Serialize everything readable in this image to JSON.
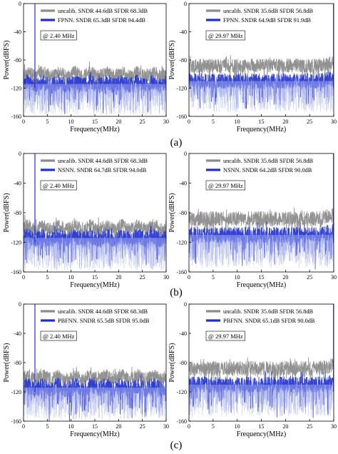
{
  "captions": [
    "(a)",
    "(b)",
    "(c)"
  ],
  "colors": {
    "uncalib": "#8c8c8c",
    "calib": "#1f2fd0",
    "calib_light": "#8d99ea",
    "axis": "#000000"
  },
  "chart_data": [
    {
      "type": "line",
      "xlabel": "Frequency(MHz)",
      "ylabel": "Power(dBFS)",
      "xlim": [
        0,
        30
      ],
      "ylim": [
        -160,
        0
      ],
      "xticks": [
        0,
        5,
        10,
        15,
        20,
        25,
        30
      ],
      "yticks": [
        0,
        -40,
        -80,
        -120,
        -160
      ],
      "annotation": "@ 2.40 MHz",
      "signal_freq_mhz": 2.4,
      "legend_position": "top",
      "series": [
        {
          "name": "uncalib. SNDR 44.6dB  SFDR 68.3dB",
          "color": "uncalib",
          "floor_db": -100,
          "spread_db": 9,
          "sndr_db": 44.6,
          "sfdr_db": 68.3
        },
        {
          "name": "FPNN. SNDR 65.3dB  SFDR 94.4dB",
          "color": "calib",
          "floor_db": -114,
          "spread_db": 11,
          "sndr_db": 65.3,
          "sfdr_db": 94.4
        }
      ]
    },
    {
      "type": "line",
      "xlabel": "Frequency(MHz)",
      "ylabel": "Power(dBFS)",
      "xlim": [
        0,
        30
      ],
      "ylim": [
        -160,
        0
      ],
      "xticks": [
        0,
        5,
        10,
        15,
        20,
        25,
        30
      ],
      "yticks": [
        0,
        -40,
        -80,
        -120,
        -160
      ],
      "annotation": "@ 29.97 MHz",
      "signal_freq_mhz": 29.97,
      "legend_position": "top",
      "series": [
        {
          "name": "uncalib. SNDR 35.6dB  SFDR 56.8dB",
          "color": "uncalib",
          "floor_db": -88,
          "spread_db": 10,
          "sndr_db": 35.6,
          "sfdr_db": 56.8
        },
        {
          "name": "FPNN. SNDR 64.9dB  SFDR 91.9dB",
          "color": "calib",
          "floor_db": -110,
          "spread_db": 11,
          "sndr_db": 64.9,
          "sfdr_db": 91.9
        }
      ]
    },
    {
      "type": "line",
      "xlabel": "Frequency(MHz)",
      "ylabel": "Power(dBFS)",
      "xlim": [
        0,
        30
      ],
      "ylim": [
        -160,
        0
      ],
      "xticks": [
        0,
        5,
        10,
        15,
        20,
        25,
        30
      ],
      "yticks": [
        0,
        -40,
        -80,
        -120,
        -160
      ],
      "annotation": "@ 2.40 MHz",
      "signal_freq_mhz": 2.4,
      "legend_position": "top",
      "series": [
        {
          "name": "uncalib. SNDR 44.6dB  SFDR 68.3dB",
          "color": "uncalib",
          "floor_db": -100,
          "spread_db": 9,
          "sndr_db": 44.6,
          "sfdr_db": 68.3
        },
        {
          "name": "NSNN. SNDR 64.7dB  SFDR 94.0dB",
          "color": "calib",
          "floor_db": -114,
          "spread_db": 11,
          "sndr_db": 64.7,
          "sfdr_db": 94.0
        }
      ]
    },
    {
      "type": "line",
      "xlabel": "Frequency(MHz)",
      "ylabel": "Power(dBFS)",
      "xlim": [
        0,
        30
      ],
      "ylim": [
        -160,
        0
      ],
      "xticks": [
        0,
        5,
        10,
        15,
        20,
        25,
        30
      ],
      "yticks": [
        0,
        -40,
        -80,
        -120,
        -160
      ],
      "annotation": "@ 29.97 MHz",
      "signal_freq_mhz": 29.97,
      "legend_position": "top",
      "series": [
        {
          "name": "uncalib. SNDR 35.6dB  SFDR 56.8dB",
          "color": "uncalib",
          "floor_db": -88,
          "spread_db": 10,
          "sndr_db": 35.6,
          "sfdr_db": 56.8
        },
        {
          "name": "NSNN. SNDR 64.2dB  SFDR 90.0dB",
          "color": "calib",
          "floor_db": -110,
          "spread_db": 11,
          "sndr_db": 64.2,
          "sfdr_db": 90.0
        }
      ]
    },
    {
      "type": "line",
      "xlabel": "Frequency(MHz)",
      "ylabel": "Power(dBFS)",
      "xlim": [
        0,
        30
      ],
      "ylim": [
        -160,
        0
      ],
      "xticks": [
        0,
        5,
        10,
        15,
        20,
        25,
        30
      ],
      "yticks": [
        0,
        -40,
        -80,
        -120,
        -160
      ],
      "annotation": "@ 2.40 MHz",
      "signal_freq_mhz": 2.4,
      "legend_position": "top",
      "series": [
        {
          "name": "uncalib. SNDR 44.6dB  SFDR 68.3dB",
          "color": "uncalib",
          "floor_db": -100,
          "spread_db": 9,
          "sndr_db": 44.6,
          "sfdr_db": 68.3
        },
        {
          "name": "PBFNN. SNDR 65.5dB  SFDR 95.0dB",
          "color": "calib",
          "floor_db": -114,
          "spread_db": 11,
          "sndr_db": 65.5,
          "sfdr_db": 95.0
        }
      ]
    },
    {
      "type": "line",
      "xlabel": "Frequency(MHz)",
      "ylabel": "Power(dBFS)",
      "xlim": [
        0,
        30
      ],
      "ylim": [
        -160,
        0
      ],
      "xticks": [
        0,
        5,
        10,
        15,
        20,
        25,
        30
      ],
      "yticks": [
        0,
        -40,
        -80,
        -120,
        -160
      ],
      "annotation": "@ 29.97 MHz",
      "signal_freq_mhz": 29.97,
      "legend_position": "top",
      "series": [
        {
          "name": "uncalib. SNDR 35.6dB  SFDR 56.8dB",
          "color": "uncalib",
          "floor_db": -88,
          "spread_db": 10,
          "sndr_db": 35.6,
          "sfdr_db": 56.8
        },
        {
          "name": "PBFNN. SNDR 65.1dB  SFDR 90.0dB",
          "color": "calib",
          "floor_db": -110,
          "spread_db": 11,
          "sndr_db": 65.1,
          "sfdr_db": 90.0
        }
      ]
    }
  ]
}
